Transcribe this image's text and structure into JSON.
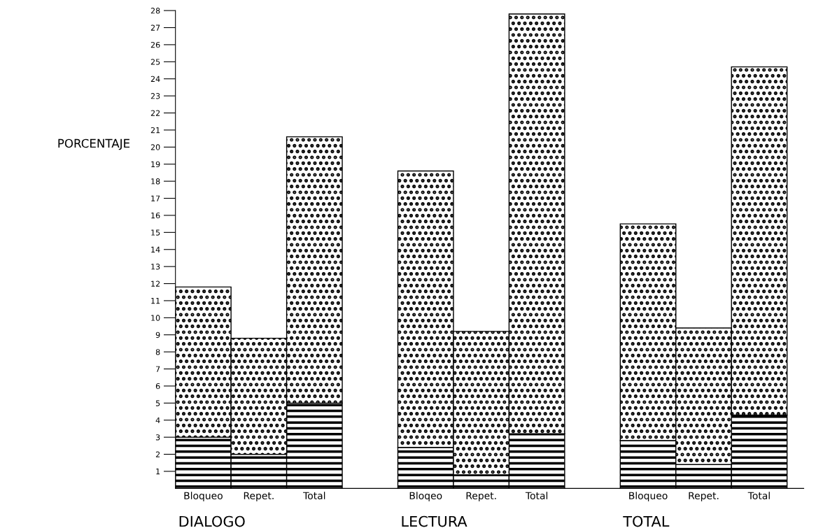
{
  "chart_data": {
    "type": "bar",
    "stacked": true,
    "ylabel": "PORCENTAJE",
    "categories": [
      "Bloqueo",
      "Repet.",
      "Total",
      null,
      "Bloqeo",
      "Repet.",
      "Total",
      null,
      "Bloqueo",
      "Repet.",
      "Total"
    ],
    "series": [
      {
        "color": "#000000",
        "values": [
          3.0,
          2.0,
          5.0,
          null,
          2.4,
          0.8,
          3.2,
          null,
          2.8,
          1.4,
          4.3
        ]
      },
      {
        "color": "#000000",
        "values": [
          8.8,
          6.8,
          15.6,
          null,
          16.2,
          8.4,
          24.6,
          null,
          12.7,
          8.0,
          20.4
        ]
      }
    ],
    "annotations": [
      "DIALOGO",
      "LECTURA",
      "TOTAL"
    ],
    "ylim": [
      0,
      28
    ],
    "yticks": [
      1,
      2,
      3,
      4,
      5,
      6,
      7,
      8,
      9,
      10,
      11,
      12,
      13,
      14,
      15,
      16,
      17,
      18,
      19,
      20,
      21,
      22,
      23,
      24,
      25,
      26,
      27,
      28
    ],
    "grid": false,
    "legend": false
  }
}
